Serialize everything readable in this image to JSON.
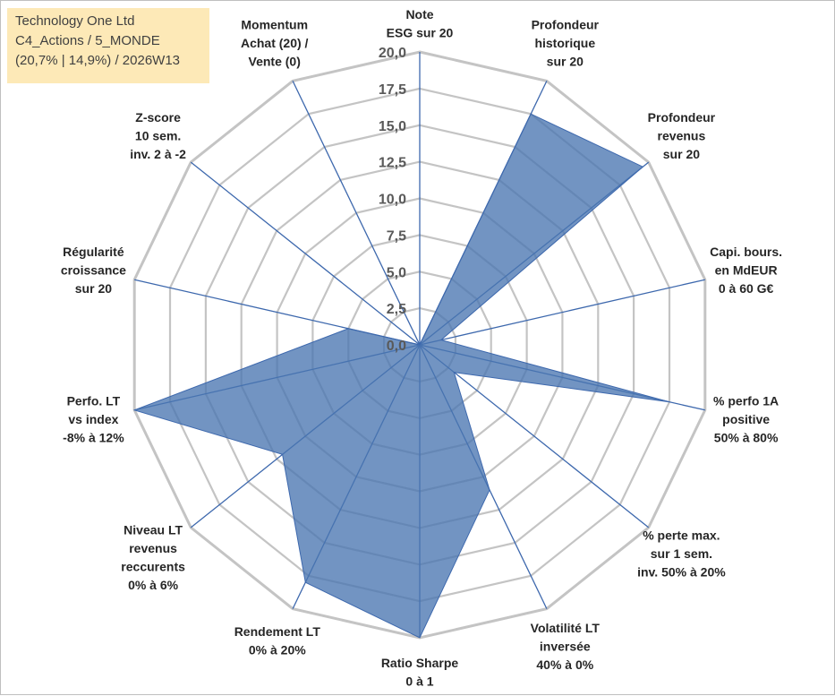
{
  "info": {
    "line1": "Technology One Ltd",
    "line2": "C4_Actions / 5_MONDE",
    "line3": "(20,7% | 14,9%) / 2026W13"
  },
  "colors": {
    "fill": "#4a76b1",
    "line": "#3d68ad",
    "grid": "#c4c4c4",
    "info_bg": "#fde9b7"
  },
  "chart_data": {
    "type": "radar",
    "title": "",
    "rmin": 0,
    "rmax": 20,
    "tick_step": 2.5,
    "tick_labels": [
      "0,0",
      "2,5",
      "5,0",
      "7,5",
      "10,0",
      "12,5",
      "15,0",
      "17,5",
      "20,0"
    ],
    "axes": [
      {
        "label": [
          "Note",
          "ESG sur 20"
        ],
        "value": 0
      },
      {
        "label": [
          "Profondeur",
          "historique",
          "sur 20"
        ],
        "value": 17.5
      },
      {
        "label": [
          "Profondeur",
          "revenus",
          "sur 20"
        ],
        "value": 19.5
      },
      {
        "label": [
          "Capi. bours.",
          "en MdEUR",
          "0 à 60 G€"
        ],
        "value": 1.5
      },
      {
        "label": [
          "% perfo 1A",
          "positive",
          "50% à 80%"
        ],
        "value": 17.5
      },
      {
        "label": [
          "% perte max.",
          "sur 1 sem.",
          "inv. 50% à 20%"
        ],
        "value": 3
      },
      {
        "label": [
          "Volatilité LT",
          "inversée",
          "40% à 0%"
        ],
        "value": 11
      },
      {
        "label": [
          "Ratio Sharpe",
          "0 à 1"
        ],
        "value": 20
      },
      {
        "label": [
          "Rendement LT",
          "0% à 20%"
        ],
        "value": 18
      },
      {
        "label": [
          "Niveau LT",
          "revenus",
          "reccurents",
          "0% à 6%"
        ],
        "value": 12
      },
      {
        "label": [
          "Perfo. LT",
          "vs index",
          "-8% à 12%"
        ],
        "value": 20
      },
      {
        "label": [
          "Régularité",
          "croissance",
          "sur 20"
        ],
        "value": 5
      },
      {
        "label": [
          "Z-score",
          "10 sem.",
          "inv. 2 à -2"
        ],
        "value": 0
      },
      {
        "label": [
          "Momentum",
          "Achat (20) /",
          "Vente (0)"
        ],
        "value": 0
      }
    ]
  }
}
